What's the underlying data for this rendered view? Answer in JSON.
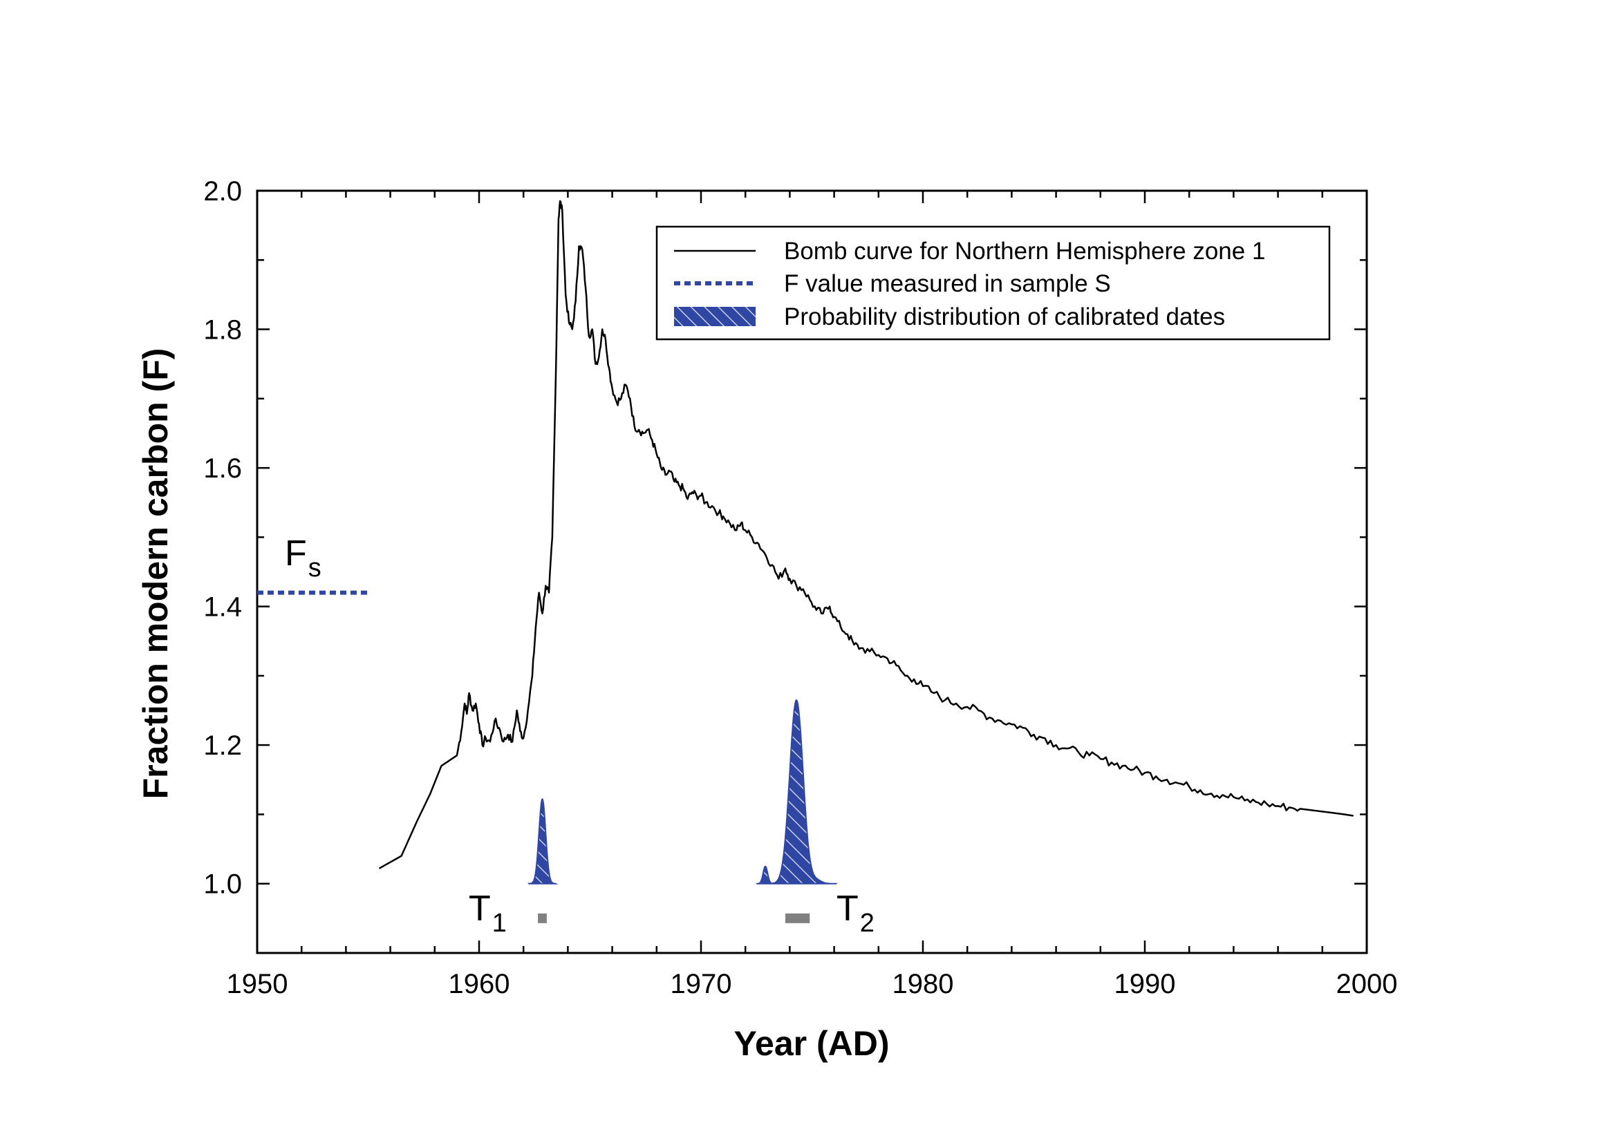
{
  "chart_data": {
    "type": "line",
    "title": "",
    "xlabel": "Year (AD)",
    "ylabel": "Fraction modern carbon (F)",
    "xlim": [
      1950,
      2000
    ],
    "ylim": [
      0.9,
      2.0
    ],
    "x_ticks": [
      1950,
      1960,
      1970,
      1980,
      1990,
      2000
    ],
    "x_tick_labels": [
      "1950",
      "1960",
      "1970",
      "1980",
      "1990",
      "2000"
    ],
    "y_ticks": [
      1.0,
      1.2,
      1.4,
      1.6,
      1.8,
      2.0
    ],
    "y_tick_labels": [
      "1.0",
      "1.2",
      "1.4",
      "1.6",
      "1.8",
      "2.0"
    ],
    "grid": false,
    "legend_position": "top-right",
    "legend": [
      {
        "label": "Bomb curve for Northern Hemisphere zone 1",
        "style": "solid-line",
        "color": "#000000"
      },
      {
        "label": "F value measured in sample S",
        "style": "dotted-line",
        "color": "#2f47a3"
      },
      {
        "label": "Probability distribution of calibrated dates",
        "style": "hatched-area",
        "color": "#2f47a3"
      }
    ],
    "series": [
      {
        "name": "Bomb curve for Northern Hemisphere zone 1",
        "color": "#000000",
        "points": [
          [
            1955.5,
            1.022
          ],
          [
            1956.5,
            1.04
          ],
          [
            1957.2,
            1.09
          ],
          [
            1957.8,
            1.13
          ],
          [
            1958.3,
            1.17
          ],
          [
            1959.0,
            1.185
          ],
          [
            1959.2,
            1.22
          ],
          [
            1959.35,
            1.26
          ],
          [
            1959.45,
            1.245
          ],
          [
            1959.55,
            1.275
          ],
          [
            1959.7,
            1.25
          ],
          [
            1959.85,
            1.26
          ],
          [
            1960.0,
            1.23
          ],
          [
            1960.15,
            1.2
          ],
          [
            1960.3,
            1.21
          ],
          [
            1960.5,
            1.205
          ],
          [
            1960.7,
            1.235
          ],
          [
            1960.9,
            1.225
          ],
          [
            1961.1,
            1.205
          ],
          [
            1961.3,
            1.215
          ],
          [
            1961.5,
            1.205
          ],
          [
            1961.7,
            1.25
          ],
          [
            1961.85,
            1.22
          ],
          [
            1962.0,
            1.21
          ],
          [
            1962.2,
            1.25
          ],
          [
            1962.4,
            1.3
          ],
          [
            1962.55,
            1.37
          ],
          [
            1962.7,
            1.42
          ],
          [
            1962.85,
            1.39
          ],
          [
            1963.0,
            1.43
          ],
          [
            1963.15,
            1.42
          ],
          [
            1963.3,
            1.5
          ],
          [
            1963.45,
            1.72
          ],
          [
            1963.58,
            1.96
          ],
          [
            1963.65,
            1.985
          ],
          [
            1963.75,
            1.97
          ],
          [
            1963.9,
            1.85
          ],
          [
            1964.05,
            1.81
          ],
          [
            1964.2,
            1.8
          ],
          [
            1964.35,
            1.84
          ],
          [
            1964.5,
            1.92
          ],
          [
            1964.65,
            1.915
          ],
          [
            1964.8,
            1.86
          ],
          [
            1964.95,
            1.79
          ],
          [
            1965.1,
            1.8
          ],
          [
            1965.25,
            1.75
          ],
          [
            1965.4,
            1.76
          ],
          [
            1965.55,
            1.8
          ],
          [
            1965.7,
            1.785
          ],
          [
            1965.85,
            1.745
          ],
          [
            1966.0,
            1.715
          ],
          [
            1966.2,
            1.695
          ],
          [
            1966.4,
            1.7
          ],
          [
            1966.6,
            1.72
          ],
          [
            1966.8,
            1.7
          ],
          [
            1967.0,
            1.66
          ],
          [
            1967.2,
            1.655
          ],
          [
            1967.4,
            1.65
          ],
          [
            1967.6,
            1.655
          ],
          [
            1967.8,
            1.64
          ],
          [
            1968.0,
            1.62
          ],
          [
            1968.2,
            1.6
          ],
          [
            1968.4,
            1.59
          ],
          [
            1968.6,
            1.595
          ],
          [
            1968.8,
            1.58
          ],
          [
            1969.0,
            1.575
          ],
          [
            1969.2,
            1.57
          ],
          [
            1969.4,
            1.555
          ],
          [
            1969.6,
            1.565
          ],
          [
            1969.8,
            1.56
          ],
          [
            1970.0,
            1.56
          ],
          [
            1970.2,
            1.55
          ],
          [
            1970.5,
            1.545
          ],
          [
            1970.8,
            1.535
          ],
          [
            1971.0,
            1.53
          ],
          [
            1971.3,
            1.52
          ],
          [
            1971.6,
            1.51
          ],
          [
            1971.8,
            1.52
          ],
          [
            1972.0,
            1.51
          ],
          [
            1972.3,
            1.5
          ],
          [
            1972.6,
            1.49
          ],
          [
            1972.9,
            1.475
          ],
          [
            1973.2,
            1.46
          ],
          [
            1973.5,
            1.44
          ],
          [
            1973.8,
            1.455
          ],
          [
            1974.0,
            1.44
          ],
          [
            1974.3,
            1.43
          ],
          [
            1974.6,
            1.425
          ],
          [
            1974.9,
            1.41
          ],
          [
            1975.2,
            1.395
          ],
          [
            1975.5,
            1.39
          ],
          [
            1975.8,
            1.4
          ],
          [
            1976.0,
            1.385
          ],
          [
            1976.3,
            1.37
          ],
          [
            1976.6,
            1.36
          ],
          [
            1976.9,
            1.345
          ],
          [
            1977.2,
            1.34
          ],
          [
            1977.6,
            1.335
          ],
          [
            1978.0,
            1.33
          ],
          [
            1978.4,
            1.325
          ],
          [
            1978.8,
            1.315
          ],
          [
            1979.2,
            1.3
          ],
          [
            1979.6,
            1.295
          ],
          [
            1980.0,
            1.285
          ],
          [
            1980.5,
            1.275
          ],
          [
            1981.0,
            1.265
          ],
          [
            1981.5,
            1.26
          ],
          [
            1982.0,
            1.255
          ],
          [
            1982.5,
            1.25
          ],
          [
            1983.0,
            1.24
          ],
          [
            1983.5,
            1.235
          ],
          [
            1984.0,
            1.23
          ],
          [
            1984.5,
            1.225
          ],
          [
            1985.0,
            1.215
          ],
          [
            1985.5,
            1.21
          ],
          [
            1986.0,
            1.2
          ],
          [
            1986.5,
            1.195
          ],
          [
            1987.0,
            1.19
          ],
          [
            1987.5,
            1.185
          ],
          [
            1988.0,
            1.18
          ],
          [
            1988.5,
            1.175
          ],
          [
            1989.0,
            1.17
          ],
          [
            1989.5,
            1.165
          ],
          [
            1990.0,
            1.16
          ],
          [
            1990.5,
            1.155
          ],
          [
            1991.0,
            1.15
          ],
          [
            1991.5,
            1.145
          ],
          [
            1992.0,
            1.14
          ],
          [
            1992.5,
            1.135
          ],
          [
            1993.0,
            1.13
          ],
          [
            1993.5,
            1.128
          ],
          [
            1994.0,
            1.125
          ],
          [
            1994.5,
            1.12
          ],
          [
            1995.0,
            1.118
          ],
          [
            1995.5,
            1.115
          ],
          [
            1996.0,
            1.112
          ],
          [
            1996.5,
            1.11
          ],
          [
            1997.0,
            1.108
          ],
          [
            1997.5,
            1.106
          ],
          [
            1998.0,
            1.104
          ],
          [
            1998.5,
            1.102
          ],
          [
            1999.0,
            1.1
          ],
          [
            1999.4,
            1.098
          ]
        ]
      }
    ],
    "reference_line": {
      "name": "F value measured in sample S",
      "y": 1.42,
      "x_range": [
        1950,
        1955
      ],
      "color": "#2f47a3",
      "label": "F",
      "label_sub": "s"
    },
    "distributions": [
      {
        "name": "T1",
        "color": "#2f47a3",
        "baseline": 1.0,
        "peaks": [
          {
            "center": 1962.85,
            "sigma": 0.15,
            "height": 0.122
          }
        ],
        "range_bar": [
          1962.65,
          1963.05
        ],
        "range_bar_y": 0.95,
        "bar_color": "#808080",
        "label": "T",
        "label_sub": "1"
      },
      {
        "name": "T2",
        "color": "#2f47a3",
        "baseline": 1.0,
        "peaks": [
          {
            "center": 1974.3,
            "sigma": 0.3,
            "height": 0.265
          },
          {
            "center": 1972.9,
            "sigma": 0.1,
            "height": 0.025
          },
          {
            "center": 1975.2,
            "sigma": 0.22,
            "height": 0.005
          }
        ],
        "range_bar": [
          1973.8,
          1974.9
        ],
        "range_bar_y": 0.95,
        "bar_color": "#808080",
        "label": "T",
        "label_sub": "2"
      }
    ]
  }
}
